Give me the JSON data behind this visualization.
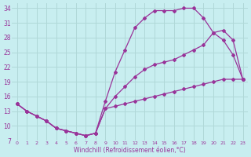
{
  "xlabel": "Windchill (Refroidissement éolien,°C)",
  "bg_color": "#c8eef0",
  "grid_color": "#b0d8d8",
  "line_color": "#993399",
  "xlim": [
    -0.5,
    23.5
  ],
  "ylim": [
    7,
    35
  ],
  "yticks": [
    7,
    10,
    13,
    16,
    19,
    22,
    25,
    28,
    31,
    34
  ],
  "xticks": [
    0,
    1,
    2,
    3,
    4,
    5,
    6,
    7,
    8,
    9,
    10,
    11,
    12,
    13,
    14,
    15,
    16,
    17,
    18,
    19,
    20,
    21,
    22,
    23
  ],
  "curve1_x": [
    0,
    1,
    2,
    3,
    4,
    5,
    6,
    7,
    8,
    9,
    10,
    11,
    12,
    13,
    14,
    15,
    16,
    17,
    18,
    19,
    20,
    21,
    22,
    23
  ],
  "curve1_y": [
    14.5,
    13.0,
    12.0,
    11.0,
    9.5,
    9.0,
    8.5,
    8.0,
    8.5,
    15.0,
    21.0,
    25.5,
    30.0,
    32.0,
    33.5,
    33.5,
    33.5,
    34.0,
    34.0,
    32.0,
    29.0,
    27.5,
    24.5,
    19.5
  ],
  "curve2_x": [
    0,
    1,
    2,
    3,
    4,
    5,
    6,
    7,
    8,
    9,
    10,
    11,
    12,
    13,
    14,
    15,
    16,
    17,
    18,
    19,
    20,
    21,
    22,
    23
  ],
  "curve2_y": [
    14.5,
    13.0,
    12.0,
    11.0,
    9.5,
    9.0,
    8.5,
    8.0,
    8.5,
    13.5,
    16.0,
    18.0,
    20.0,
    21.5,
    22.5,
    23.0,
    23.5,
    24.5,
    25.5,
    26.5,
    29.0,
    29.5,
    27.5,
    19.5
  ],
  "curve3_x": [
    0,
    1,
    2,
    3,
    4,
    5,
    6,
    7,
    8,
    9,
    10,
    11,
    12,
    13,
    14,
    15,
    16,
    17,
    18,
    19,
    20,
    21,
    22,
    23
  ],
  "curve3_y": [
    14.5,
    13.0,
    12.0,
    11.0,
    9.5,
    9.0,
    8.5,
    8.0,
    8.5,
    13.5,
    14.0,
    14.5,
    15.0,
    15.5,
    16.0,
    16.5,
    17.0,
    17.5,
    18.0,
    18.5,
    19.0,
    19.5,
    19.5,
    19.5
  ]
}
